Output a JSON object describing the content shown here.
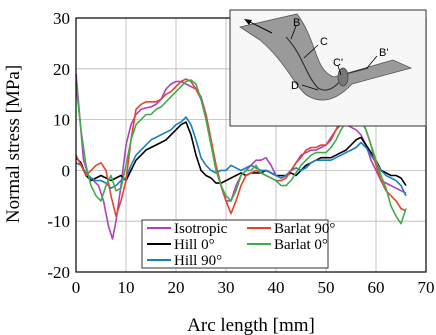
{
  "chart_data": {
    "type": "line",
    "xlabel": "Arc length [mm]",
    "ylabel": "Normal stress [MPa]",
    "xlim": [
      0,
      70
    ],
    "ylim": [
      -20,
      30
    ],
    "xticks": [
      "0",
      "10",
      "20",
      "30",
      "40",
      "50",
      "60",
      "70"
    ],
    "yticks": [
      "-20",
      "-10",
      "0",
      "10",
      "20",
      "30"
    ],
    "grid": true,
    "legend_position": "bottom-left",
    "inset_labels": [
      "B",
      "C",
      "C'",
      "B'",
      "D"
    ],
    "series": [
      {
        "name": "Isotropic",
        "color": "#b040c0",
        "x": [
          0,
          0.8,
          1.5,
          2.5,
          3.5,
          4.5,
          5.5,
          6.5,
          7.3,
          8,
          9,
          10,
          11,
          12,
          13,
          14,
          15,
          16,
          17,
          18,
          19,
          20,
          21,
          22,
          23,
          24,
          25,
          26,
          27,
          28,
          29,
          30,
          31,
          32,
          33,
          34,
          35,
          36,
          37,
          38,
          39,
          40,
          41,
          42,
          43,
          44,
          45,
          46,
          47,
          48,
          49,
          50,
          51,
          52,
          53,
          54,
          55,
          56,
          57,
          58,
          59,
          60,
          61,
          62,
          63,
          64,
          65,
          66
        ],
        "y": [
          19,
          10,
          2,
          -1,
          -2,
          -3,
          -6,
          -11,
          -13.5,
          -10,
          -3,
          5,
          9,
          11,
          12,
          12.3,
          12.5,
          13,
          14,
          16,
          17,
          17.5,
          17.5,
          17,
          16.5,
          16,
          14.5,
          11,
          6,
          1,
          -3,
          -6,
          -6,
          -3,
          -1,
          0,
          1,
          2,
          2,
          2.5,
          1,
          -1,
          -1.5,
          -1,
          0,
          1.5,
          3,
          3.5,
          4,
          4,
          4.5,
          5,
          6.5,
          8,
          9,
          9,
          8.5,
          8,
          7,
          5,
          2,
          0,
          -2,
          -2.5,
          -3,
          -3.5,
          -4,
          -4.5
        ]
      },
      {
        "name": "Hill 0°",
        "color": "#000000",
        "x": [
          0,
          1,
          2,
          3,
          4,
          5,
          6,
          7,
          8,
          9,
          10,
          11,
          12,
          13,
          14,
          15,
          16,
          17,
          18,
          19,
          20,
          21,
          22,
          23,
          24,
          25,
          26,
          27,
          28,
          29,
          30,
          31,
          32,
          33,
          34,
          35,
          36,
          37,
          38,
          39,
          40,
          41,
          42,
          43,
          44,
          45,
          46,
          47,
          48,
          49,
          50,
          51,
          52,
          53,
          54,
          55,
          56,
          57,
          58,
          59,
          60,
          61,
          62,
          63,
          64,
          65,
          66
        ],
        "y": [
          2.5,
          1.5,
          -1,
          -2,
          -1.5,
          -1,
          -1.5,
          -2,
          -1.5,
          -1,
          -2,
          0,
          2,
          3,
          4,
          4.5,
          5,
          5.5,
          6,
          7,
          8,
          9,
          9.5,
          7,
          3,
          0,
          -1,
          -1.5,
          -2.5,
          -2.5,
          -2,
          -1.5,
          -1,
          -0.5,
          -1,
          -0.5,
          -0.5,
          -0.5,
          0,
          -0.5,
          -1,
          -1,
          -1,
          -0.5,
          -1,
          0,
          1,
          1.5,
          2,
          2.5,
          2.5,
          2.5,
          3,
          3.5,
          4,
          5,
          6,
          6.5,
          5,
          3.5,
          2,
          0,
          -0.5,
          -1,
          -1,
          -1.5,
          -3
        ]
      },
      {
        "name": "Hill 90°",
        "color": "#1a7fc0",
        "x": [
          0,
          1,
          2,
          3,
          4,
          5,
          6,
          7,
          8,
          9,
          10,
          11,
          12,
          13,
          14,
          15,
          16,
          17,
          18,
          19,
          20,
          21,
          22,
          23,
          24,
          25,
          26,
          27,
          28,
          29,
          30,
          31,
          32,
          33,
          34,
          35,
          36,
          37,
          38,
          39,
          40,
          41,
          42,
          43,
          44,
          45,
          46,
          47,
          48,
          49,
          50,
          51,
          52,
          53,
          54,
          55,
          56,
          57,
          58,
          59,
          60,
          61,
          62,
          63,
          64,
          65,
          66
        ],
        "y": [
          1.5,
          1,
          -0.5,
          -1.5,
          -2,
          -2,
          -2.5,
          -3.5,
          -3,
          -2,
          -1.5,
          1,
          3,
          4,
          5,
          6,
          6.5,
          7,
          7.5,
          8,
          9,
          9.5,
          10.5,
          9,
          6,
          2.5,
          1,
          0,
          -0.5,
          0,
          0,
          1,
          0.5,
          0,
          0.5,
          1,
          0.5,
          0,
          0,
          -0.5,
          -1,
          -1.5,
          -1,
          0,
          0.5,
          0,
          0.5,
          1.5,
          2,
          2,
          2,
          2,
          2.5,
          3,
          3.5,
          4,
          4.5,
          5.5,
          4.5,
          3,
          1.5,
          0,
          -1,
          -1.5,
          -2,
          -3,
          -5
        ]
      },
      {
        "name": "Barlat 90°",
        "color": "#e5432f",
        "x": [
          0,
          1,
          2,
          3,
          4,
          5,
          6,
          7,
          8,
          9,
          10,
          11,
          12,
          13,
          14,
          15,
          16,
          17,
          18,
          19,
          20,
          21,
          22,
          23,
          24,
          25,
          26,
          27,
          28,
          29,
          30,
          31,
          32,
          33,
          34,
          35,
          36,
          37,
          38,
          39,
          40,
          41,
          42,
          43,
          44,
          45,
          46,
          47,
          48,
          49,
          50,
          51,
          52,
          53,
          54,
          55,
          56,
          57,
          58,
          59,
          60,
          61,
          62,
          63,
          64,
          65,
          66
        ],
        "y": [
          3,
          1,
          -1,
          0,
          1,
          1.5,
          0,
          -5,
          -9,
          -6,
          -2,
          6,
          12,
          13,
          13.5,
          13.5,
          13.5,
          14,
          15,
          15.5,
          16.5,
          17.5,
          18,
          17.5,
          16,
          14,
          11,
          6,
          1,
          -3,
          -6,
          -8.5,
          -6,
          -3,
          -1,
          -0.5,
          0,
          -0.5,
          -1,
          -1.5,
          -2,
          -2,
          -1.5,
          0,
          1.5,
          2.5,
          4,
          4.5,
          4.5,
          5,
          5,
          6,
          8,
          10,
          11,
          11.5,
          12,
          10,
          8,
          5,
          1,
          -2,
          -4,
          -5,
          -6,
          -7.5,
          -8
        ]
      },
      {
        "name": "Barlat 0°",
        "color": "#3fae49",
        "x": [
          0,
          1,
          2,
          3,
          4,
          5,
          6,
          7,
          8,
          9,
          10,
          11,
          12,
          13,
          14,
          15,
          16,
          17,
          18,
          19,
          20,
          21,
          22,
          23,
          24,
          25,
          26,
          27,
          28,
          29,
          30,
          31,
          32,
          33,
          34,
          35,
          36,
          37,
          38,
          39,
          40,
          41,
          42,
          43,
          44,
          45,
          46,
          47,
          48,
          49,
          50,
          51,
          52,
          53,
          54,
          55,
          56,
          57,
          58,
          59,
          60,
          61,
          62,
          63,
          64,
          65,
          66
        ],
        "y": [
          17,
          8,
          1,
          -3,
          -5,
          -6,
          -3,
          -1,
          -4,
          -3.5,
          1,
          6,
          9,
          10,
          11,
          11,
          12,
          12.5,
          13.5,
          14.5,
          15.5,
          16.5,
          17.5,
          17.8,
          17,
          14,
          10,
          5,
          0,
          -3,
          -5,
          -6,
          -4,
          -1,
          0,
          0,
          1,
          -0.5,
          -1,
          -1.5,
          -2,
          -3,
          -3,
          -2,
          -0.5,
          1,
          2,
          3,
          3.5,
          3.5,
          3.5,
          4.5,
          6,
          8,
          9.5,
          10.5,
          11,
          10,
          8,
          5,
          2,
          -1,
          -3.5,
          -7,
          -9,
          -10.5,
          -7.5
        ]
      }
    ]
  }
}
